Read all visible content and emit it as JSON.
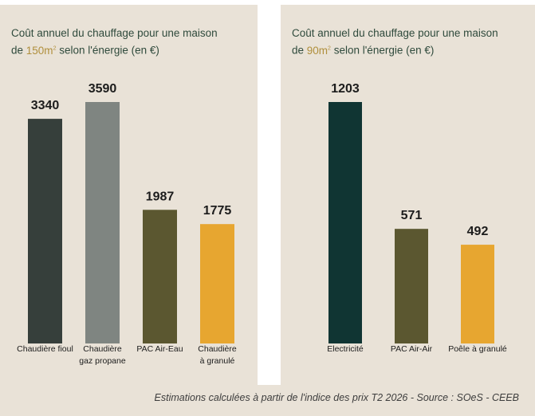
{
  "chart_data": [
    {
      "type": "bar",
      "title_pre": "Coût annuel du chauffage pour une maison",
      "title_de": "de ",
      "title_area": "150m",
      "title_sup": "2",
      "title_post": " selon l'énergie (en €)",
      "categories": [
        [
          "Chaudière fioul"
        ],
        [
          "Chaudière",
          "gaz propane"
        ],
        [
          "PAC Air-Eau"
        ],
        [
          "Chaudière",
          "à granulé"
        ]
      ],
      "values": [
        3340,
        3590,
        1987,
        1775
      ],
      "colors": [
        "#363f3b",
        "#7f8581",
        "#5b5730",
        "#e7a630"
      ],
      "ylim": [
        0,
        3590
      ]
    },
    {
      "type": "bar",
      "title_pre": "Coût annuel du chauffage pour une maison",
      "title_de": "de ",
      "title_area": "90m",
      "title_sup": "2",
      "title_post": " selon l'énergie (en €)",
      "categories": [
        [
          "Electricité"
        ],
        [
          "PAC Air-Air"
        ],
        [
          "Poêle à granulé"
        ]
      ],
      "values": [
        1203,
        571,
        492
      ],
      "colors": [
        "#103533",
        "#5b5730",
        "#e7a630"
      ],
      "ylim": [
        0,
        1203
      ]
    }
  ],
  "source": "Estimations calculées à partir de l'indice des prix T2 2026 - Source : SOeS - CEEB"
}
